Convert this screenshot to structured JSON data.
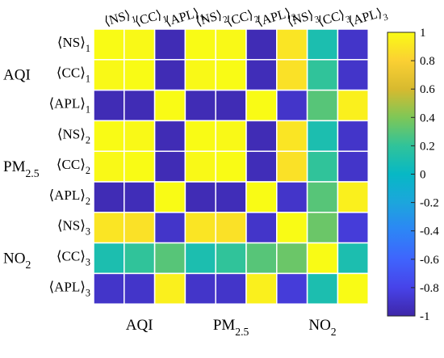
{
  "chart_data": {
    "type": "heatmap",
    "row_labels": [
      {
        "base": "⟨NS⟩",
        "sub": "1"
      },
      {
        "base": "⟨CC⟩",
        "sub": "1"
      },
      {
        "base": "⟨APL⟩",
        "sub": "1"
      },
      {
        "base": "⟨NS⟩",
        "sub": "2"
      },
      {
        "base": "⟨CC⟩",
        "sub": "2"
      },
      {
        "base": "⟨APL⟩",
        "sub": "2"
      },
      {
        "base": "⟨NS⟩",
        "sub": "3"
      },
      {
        "base": "⟨CC⟩",
        "sub": "3"
      },
      {
        "base": "⟨APL⟩",
        "sub": "3"
      }
    ],
    "col_labels": [
      {
        "base": "⟨NS⟩",
        "sub": "1"
      },
      {
        "base": "⟨CC⟩",
        "sub": "1"
      },
      {
        "base": "⟨APL⟩",
        "sub": "1"
      },
      {
        "base": "⟨NS⟩",
        "sub": "2"
      },
      {
        "base": "⟨CC⟩",
        "sub": "2"
      },
      {
        "base": "⟨APL⟩",
        "sub": "2"
      },
      {
        "base": "⟨NS⟩",
        "sub": "3"
      },
      {
        "base": "⟨CC⟩",
        "sub": "3"
      },
      {
        "base": "⟨APL⟩",
        "sub": "3"
      }
    ],
    "row_groups": [
      {
        "base": "AQI",
        "sub": "",
        "rows": [
          0,
          2
        ]
      },
      {
        "base": "PM",
        "sub": "2.5",
        "rows": [
          3,
          5
        ]
      },
      {
        "base": "NO",
        "sub": "2",
        "rows": [
          6,
          8
        ]
      }
    ],
    "col_groups": [
      {
        "base": "AQI",
        "sub": "",
        "cols": [
          0,
          2
        ]
      },
      {
        "base": "PM",
        "sub": "2.5",
        "cols": [
          3,
          5
        ]
      },
      {
        "base": "NO",
        "sub": "2",
        "cols": [
          6,
          8
        ]
      }
    ],
    "values": [
      [
        1.0,
        0.99,
        -0.96,
        1.0,
        0.99,
        -0.96,
        0.9,
        0.1,
        -0.9
      ],
      [
        0.99,
        1.0,
        -0.96,
        0.99,
        1.0,
        -0.95,
        0.88,
        0.2,
        -0.9
      ],
      [
        -0.96,
        -0.96,
        1.0,
        -0.96,
        -0.96,
        1.0,
        -0.9,
        0.3,
        0.95
      ],
      [
        1.0,
        0.99,
        -0.96,
        1.0,
        0.99,
        -0.96,
        0.9,
        0.1,
        -0.9
      ],
      [
        0.99,
        1.0,
        -0.96,
        0.99,
        1.0,
        -0.95,
        0.88,
        0.2,
        -0.9
      ],
      [
        -0.96,
        -0.95,
        1.0,
        -0.96,
        -0.95,
        1.0,
        -0.9,
        0.3,
        0.95
      ],
      [
        0.9,
        0.88,
        -0.9,
        0.9,
        0.88,
        -0.9,
        1.0,
        0.35,
        -0.85
      ],
      [
        0.1,
        0.2,
        0.3,
        0.1,
        0.2,
        0.3,
        0.35,
        1.0,
        0.1
      ],
      [
        -0.9,
        -0.9,
        0.95,
        -0.9,
        -0.9,
        0.95,
        -0.85,
        0.1,
        1.0
      ]
    ],
    "colorbar": {
      "range": [
        -1,
        1
      ],
      "ticks": [
        "1",
        "0.8",
        "0.6",
        "0.4",
        "0.2",
        "0",
        "-0.2",
        "-0.4",
        "-0.6",
        "-0.8",
        "-1"
      ],
      "colormap": "parula"
    }
  }
}
